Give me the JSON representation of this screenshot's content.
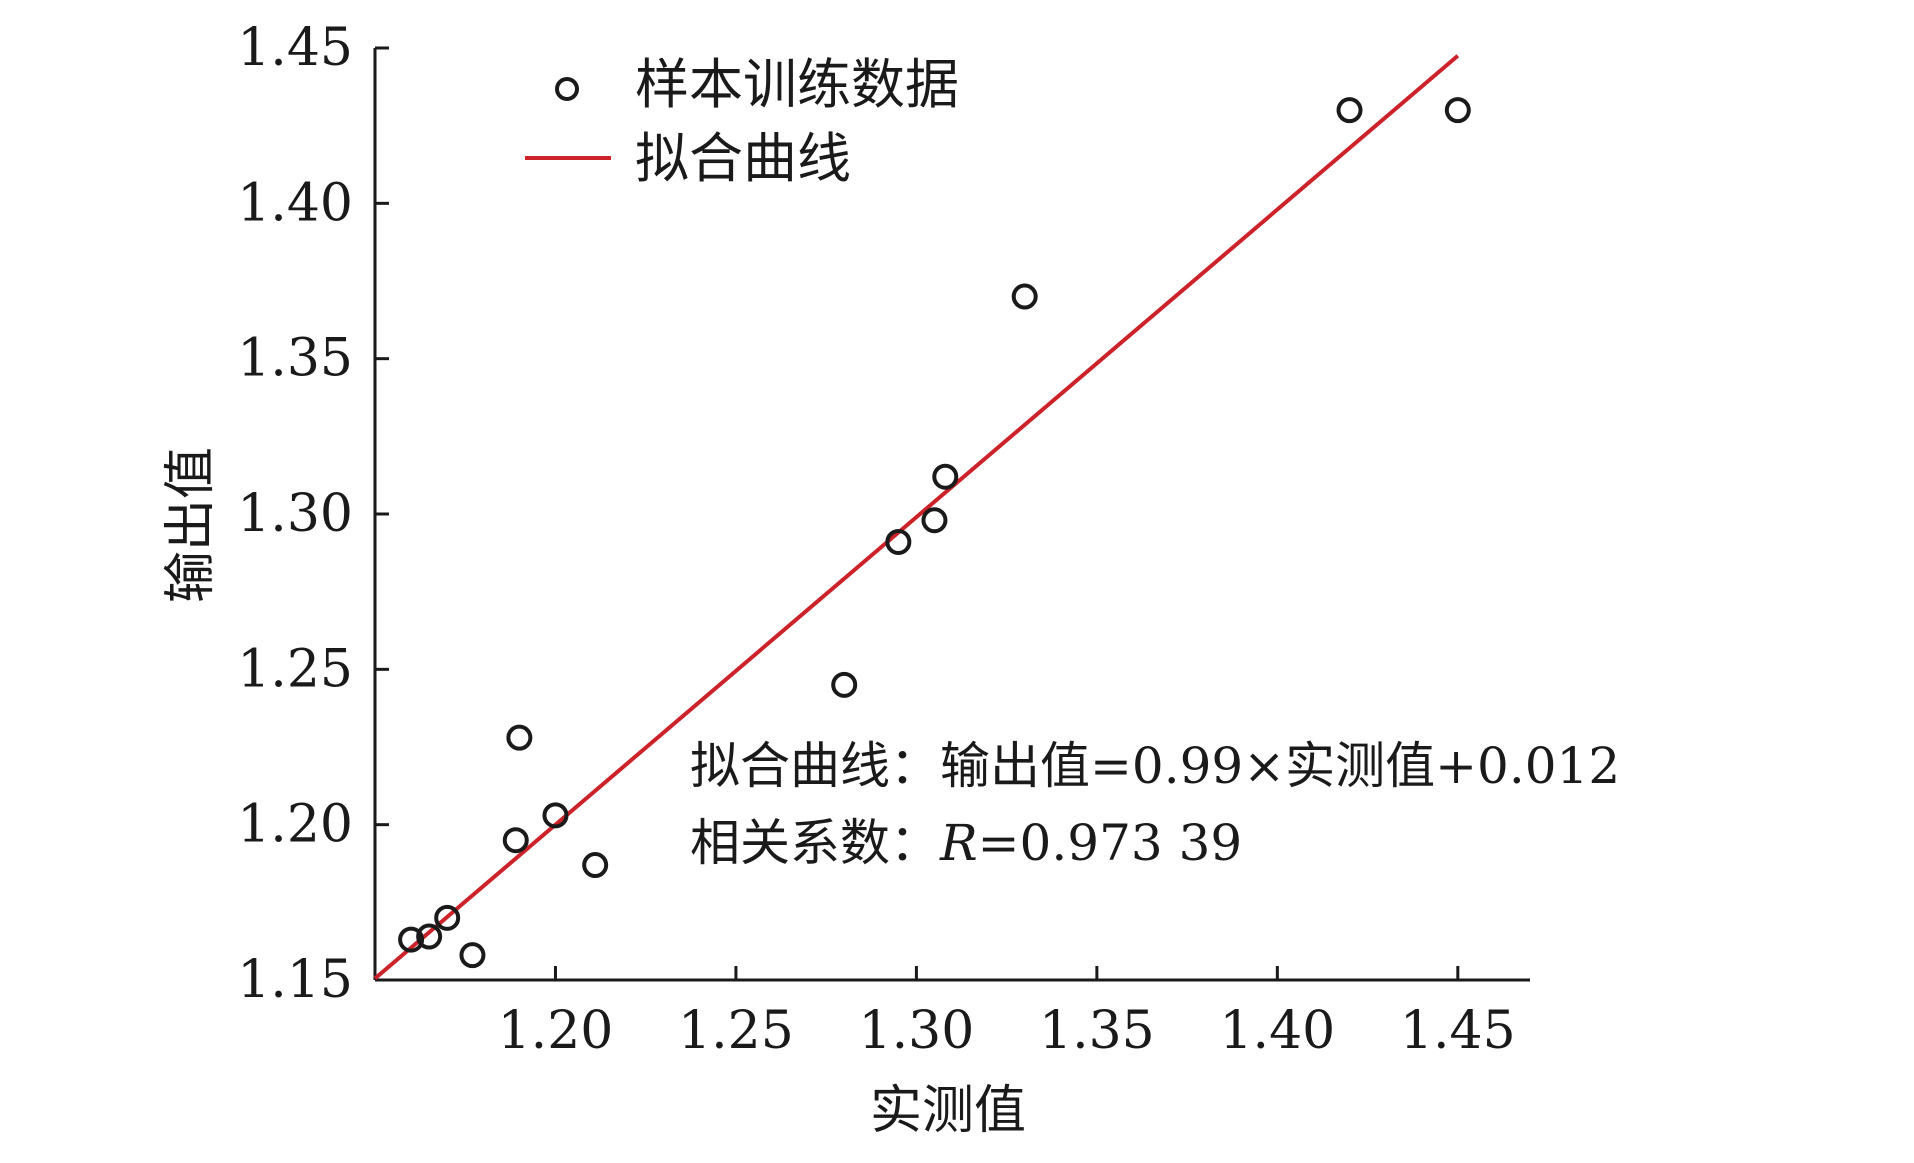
{
  "chart_data": {
    "type": "scatter",
    "xlabel": "实测值",
    "ylabel": "输出值",
    "xlim": [
      1.15,
      1.47
    ],
    "ylim": [
      1.15,
      1.45
    ],
    "x_ticks": [
      "1.20",
      "1.25",
      "1.30",
      "1.35",
      "1.40",
      "1.45"
    ],
    "x_tick_values": [
      1.2,
      1.25,
      1.3,
      1.35,
      1.4,
      1.45
    ],
    "y_ticks": [
      "1.15",
      "1.20",
      "1.25",
      "1.30",
      "1.35",
      "1.40",
      "1.45"
    ],
    "y_tick_values": [
      1.15,
      1.2,
      1.25,
      1.3,
      1.35,
      1.4,
      1.45
    ],
    "legend_position": "top-left",
    "grid": false,
    "series": [
      {
        "name": "样本训练数据",
        "kind": "scatter",
        "marker": "open-circle",
        "color": "#1a1a1a",
        "points": [
          {
            "x": 1.16,
            "y": 1.163
          },
          {
            "x": 1.165,
            "y": 1.164
          },
          {
            "x": 1.17,
            "y": 1.17
          },
          {
            "x": 1.177,
            "y": 1.158
          },
          {
            "x": 1.189,
            "y": 1.195
          },
          {
            "x": 1.19,
            "y": 1.228
          },
          {
            "x": 1.2,
            "y": 1.203
          },
          {
            "x": 1.211,
            "y": 1.187
          },
          {
            "x": 1.28,
            "y": 1.245
          },
          {
            "x": 1.295,
            "y": 1.291
          },
          {
            "x": 1.305,
            "y": 1.298
          },
          {
            "x": 1.308,
            "y": 1.312
          },
          {
            "x": 1.33,
            "y": 1.37
          },
          {
            "x": 1.42,
            "y": 1.43
          },
          {
            "x": 1.45,
            "y": 1.43
          }
        ]
      },
      {
        "name": "拟合曲线",
        "kind": "line",
        "color": "#cc2229",
        "slope": 0.99,
        "intercept": 0.012,
        "x_range": [
          1.15,
          1.45
        ]
      }
    ],
    "annotations": [
      "拟合曲线：输出值=0.99×实测值+0.012",
      "相关系数：R=0.973 39"
    ],
    "annotation_parts": {
      "line2_prefix": "相关系数：",
      "line2_r": "R",
      "line2_value": "=0.973 39"
    }
  }
}
